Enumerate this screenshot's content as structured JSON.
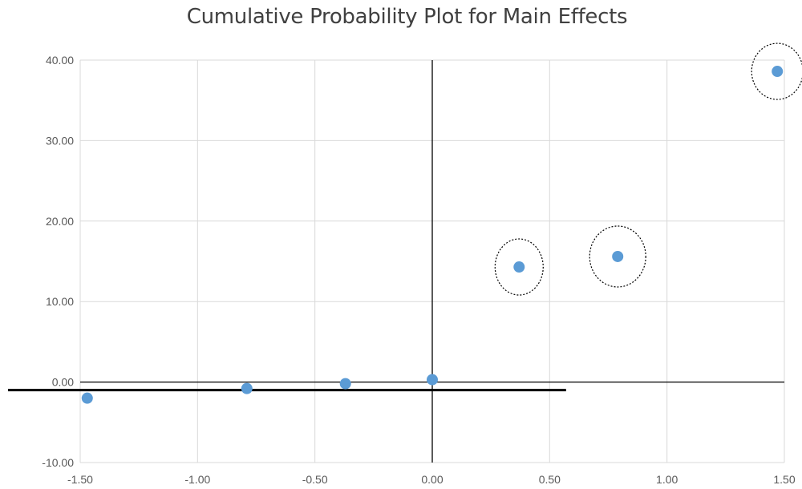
{
  "chart_data": {
    "type": "scatter",
    "title": "Cumulative Probability Plot for Main Effects",
    "xlabel": "",
    "ylabel": "",
    "xlim": [
      -1.5,
      1.5
    ],
    "ylim": [
      -10,
      40
    ],
    "x_ticks": [
      "-1.50",
      "-1.00",
      "-0.50",
      "0.00",
      "0.50",
      "1.00",
      "1.50"
    ],
    "y_ticks": [
      "40.00",
      "30.00",
      "20.00",
      "10.00",
      "0.00",
      "-10.00"
    ],
    "x_tick_values": [
      -1.5,
      -1.0,
      -0.5,
      0.0,
      0.5,
      1.0,
      1.5
    ],
    "y_tick_values": [
      40,
      30,
      20,
      10,
      0,
      -10
    ],
    "grid": true,
    "legend": "none",
    "series": [
      {
        "color": "#5b9bd5",
        "points": [
          {
            "x": -1.47,
            "y": -2.0
          },
          {
            "x": -0.79,
            "y": -0.8
          },
          {
            "x": -0.37,
            "y": -0.2
          },
          {
            "x": 0.0,
            "y": 0.3
          },
          {
            "x": 0.37,
            "y": 14.3
          },
          {
            "x": 0.79,
            "y": 15.6
          },
          {
            "x": 1.47,
            "y": 38.6
          }
        ]
      }
    ],
    "highlighted_points": [
      4,
      5,
      6
    ],
    "reference_line": {
      "y": -1.0,
      "x_start": -1.5,
      "x_end": 0.57,
      "color": "#000000"
    }
  }
}
